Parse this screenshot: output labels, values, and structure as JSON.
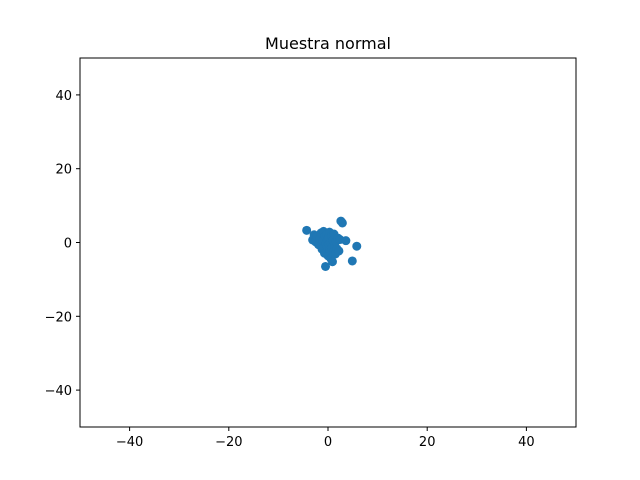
{
  "chart_data": {
    "type": "scatter",
    "title": "Muestra normal",
    "xlabel": "",
    "ylabel": "",
    "xlim": [
      -50,
      50
    ],
    "ylim": [
      -50,
      50
    ],
    "xticks": [
      -40,
      -20,
      0,
      20,
      40
    ],
    "yticks": [
      40,
      20,
      0,
      -20,
      -40
    ],
    "grid": false,
    "series": [
      {
        "color": "#1f77b4",
        "points": [
          [
            -4.3,
            3.3
          ],
          [
            -3.1,
            0.7
          ],
          [
            -2.8,
            2.1
          ],
          [
            -2.5,
            0.2
          ],
          [
            -2.3,
            1.6
          ],
          [
            -1.9,
            -0.6
          ],
          [
            -1.6,
            1.1
          ],
          [
            -1.4,
            2.6
          ],
          [
            -1.2,
            -1.8
          ],
          [
            -1.0,
            0.4
          ],
          [
            -0.9,
            3.0
          ],
          [
            -0.7,
            -2.9
          ],
          [
            -0.6,
            1.8
          ],
          [
            -0.5,
            -6.5
          ],
          [
            -0.4,
            -0.3
          ],
          [
            -0.3,
            2.2
          ],
          [
            -0.2,
            -1.1
          ],
          [
            -0.1,
            0.9
          ],
          [
            0.0,
            -3.6
          ],
          [
            0.1,
            1.4
          ],
          [
            0.2,
            -0.5
          ],
          [
            0.3,
            2.8
          ],
          [
            0.4,
            -2.1
          ],
          [
            0.5,
            0.1
          ],
          [
            0.6,
            -4.4
          ],
          [
            0.7,
            1.9
          ],
          [
            0.8,
            -1.4
          ],
          [
            0.9,
            -5.2
          ],
          [
            1.0,
            0.6
          ],
          [
            1.1,
            -2.6
          ],
          [
            1.2,
            2.3
          ],
          [
            1.3,
            -0.9
          ],
          [
            1.5,
            -3.1
          ],
          [
            1.6,
            0.3
          ],
          [
            1.8,
            -1.7
          ],
          [
            2.0,
            1.2
          ],
          [
            2.2,
            -2.3
          ],
          [
            2.4,
            0.8
          ],
          [
            2.6,
            5.8
          ],
          [
            2.9,
            5.3
          ],
          [
            3.6,
            0.5
          ],
          [
            4.9,
            -5.0
          ],
          [
            5.8,
            -1.0
          ]
        ]
      }
    ]
  }
}
